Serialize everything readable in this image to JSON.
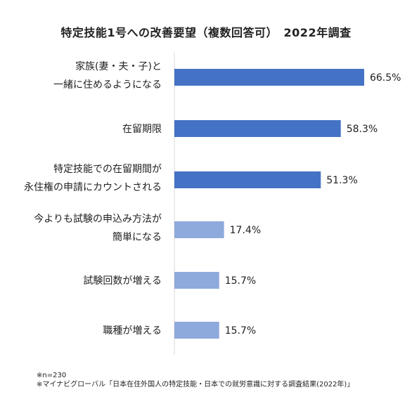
{
  "title": "特定技能1号への改善要望（複数回答可）　2022年調査",
  "chart_data": {
    "type": "bar",
    "orientation": "horizontal",
    "title": "特定技能1号への改善要望（複数回答可）　2022年調査",
    "categories": [
      [
        "家族(妻・夫・子)と",
        "一緒に住めるようになる"
      ],
      [
        "在留期限"
      ],
      [
        "特定技能での在留期間が",
        "永住権の申請にカウントされる"
      ],
      [
        "今よりも試験の申込み方法が",
        "簡単になる"
      ],
      [
        "試験回数が増える"
      ],
      [
        "職種が増える"
      ]
    ],
    "values": [
      66.5,
      58.3,
      51.3,
      17.4,
      15.7,
      15.7
    ],
    "value_labels": [
      "66.5%",
      "58.3%",
      "51.3%",
      "17.4%",
      "15.7%",
      "15.7%"
    ],
    "xlim": [
      0,
      100
    ],
    "grid": false,
    "legend": "none",
    "colors": {
      "dark": "#4472C4",
      "light": "#8EA9DB",
      "axis": "#D9D9D9"
    },
    "bar_color_scheme": [
      "dark",
      "dark",
      "dark",
      "light",
      "light",
      "light"
    ]
  },
  "notes": [
    "※n=230",
    "※マイナビグローバル「日本在住外国人の特定技能・日本での就労意識に対する調査結果(2022年)」"
  ]
}
